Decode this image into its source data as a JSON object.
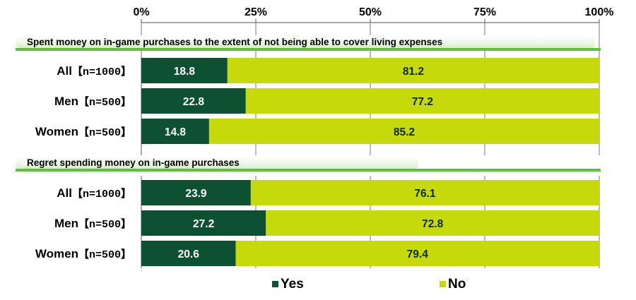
{
  "chart_data": {
    "type": "bar",
    "orientation": "horizontal",
    "stacked": true,
    "xlim": [
      0,
      100
    ],
    "ticks": [
      {
        "value": 0,
        "label": "0%"
      },
      {
        "value": 25,
        "label": "25%"
      },
      {
        "value": 50,
        "label": "50%"
      },
      {
        "value": 75,
        "label": "75%"
      },
      {
        "value": 100,
        "label": "100%"
      }
    ],
    "series_names": [
      "Yes",
      "No"
    ],
    "sections": [
      {
        "title": "Spent money on in-game purchases to the extent of not being able to cover living expenses",
        "rows": [
          {
            "label": "All",
            "n": "【n=1000】",
            "yes": 18.8,
            "no": 81.2,
            "yes_label": "18.8",
            "no_label": "81.2"
          },
          {
            "label": "Men",
            "n": "【n=500】",
            "yes": 22.8,
            "no": 77.2,
            "yes_label": "22.8",
            "no_label": "77.2"
          },
          {
            "label": "Women",
            "n": "【n=500】",
            "yes": 14.8,
            "no": 85.2,
            "yes_label": "14.8",
            "no_label": "85.2"
          }
        ]
      },
      {
        "title": "Regret spending money on in-game purchases",
        "rows": [
          {
            "label": "All",
            "n": "【n=1000】",
            "yes": 23.9,
            "no": 76.1,
            "yes_label": "23.9",
            "no_label": "76.1"
          },
          {
            "label": "Men",
            "n": "【n=500】",
            "yes": 27.2,
            "no": 72.8,
            "yes_label": "27.2",
            "no_label": "72.8"
          },
          {
            "label": "Women",
            "n": "【n=500】",
            "yes": 20.6,
            "no": 79.4,
            "yes_label": "20.6",
            "no_label": "79.4"
          }
        ]
      }
    ],
    "legend": [
      {
        "key": "yes",
        "label": "Yes",
        "color": "#0d5132"
      },
      {
        "key": "no",
        "label": "No",
        "color": "#c6d90b"
      }
    ],
    "legend_position": "bottom"
  },
  "colors": {
    "yes": "#0d5132",
    "no": "#c6d90b",
    "banner_light": "#f2f9ec",
    "banner_green": "#5fbf3f",
    "grid": "#777777"
  }
}
